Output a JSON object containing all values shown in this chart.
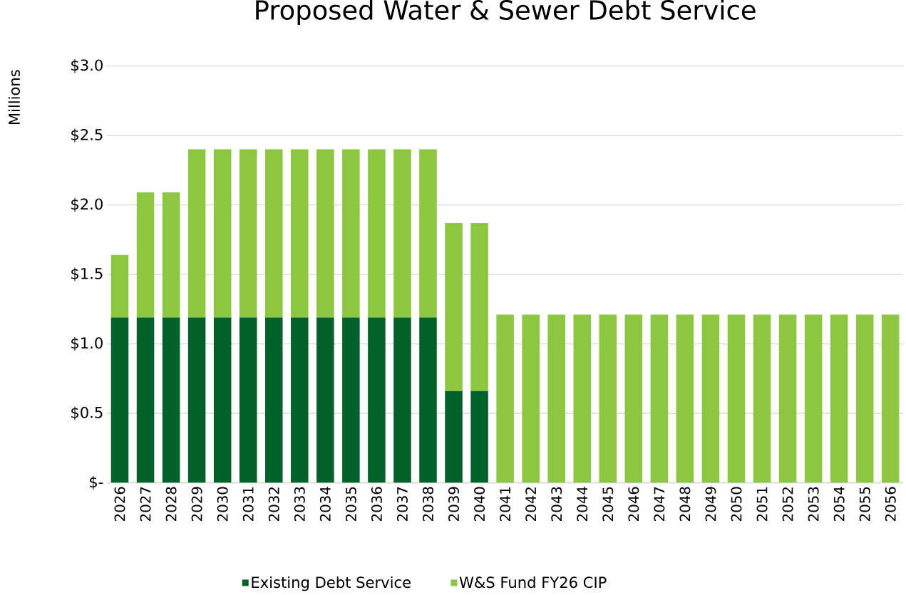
{
  "chart_data": {
    "type": "bar",
    "title": "Proposed Water & Sewer Debt Service",
    "ylabel": "Millions",
    "stacked": true,
    "categories": [
      "2026",
      "2027",
      "2028",
      "2029",
      "2030",
      "2031",
      "2032",
      "2033",
      "2034",
      "2035",
      "2036",
      "2037",
      "2038",
      "2039",
      "2040",
      "2041",
      "2042",
      "2043",
      "2044",
      "2045",
      "2046",
      "2047",
      "2048",
      "2049",
      "2050",
      "2051",
      "2052",
      "2053",
      "2054",
      "2055",
      "2056"
    ],
    "series": [
      {
        "name": "Existing Debt Service",
        "color": "#006228",
        "values": [
          1.19,
          1.19,
          1.19,
          1.19,
          1.19,
          1.19,
          1.19,
          1.19,
          1.19,
          1.19,
          1.19,
          1.19,
          1.19,
          0.66,
          0.66,
          0,
          0,
          0,
          0,
          0,
          0,
          0,
          0,
          0,
          0,
          0,
          0,
          0,
          0,
          0,
          0
        ]
      },
      {
        "name": "W&S Fund FY26 CIP",
        "color": "#8dc63f",
        "values": [
          0.45,
          0.9,
          0.9,
          1.21,
          1.21,
          1.21,
          1.21,
          1.21,
          1.21,
          1.21,
          1.21,
          1.21,
          1.21,
          1.21,
          1.21,
          1.21,
          1.21,
          1.21,
          1.21,
          1.21,
          1.21,
          1.21,
          1.21,
          1.21,
          1.21,
          1.21,
          1.21,
          1.21,
          1.21,
          1.21,
          1.21
        ]
      }
    ],
    "ylim": [
      0,
      3.0
    ],
    "yticks": [
      {
        "value": 0,
        "label": "$-"
      },
      {
        "value": 0.5,
        "label": "$0.5"
      },
      {
        "value": 1.0,
        "label": "$1.0"
      },
      {
        "value": 1.5,
        "label": "$1.5"
      },
      {
        "value": 2.0,
        "label": "$2.0"
      },
      {
        "value": 2.5,
        "label": "$2.5"
      },
      {
        "value": 3.0,
        "label": "$3.0"
      }
    ],
    "grid": "y",
    "legend": "bottom"
  }
}
